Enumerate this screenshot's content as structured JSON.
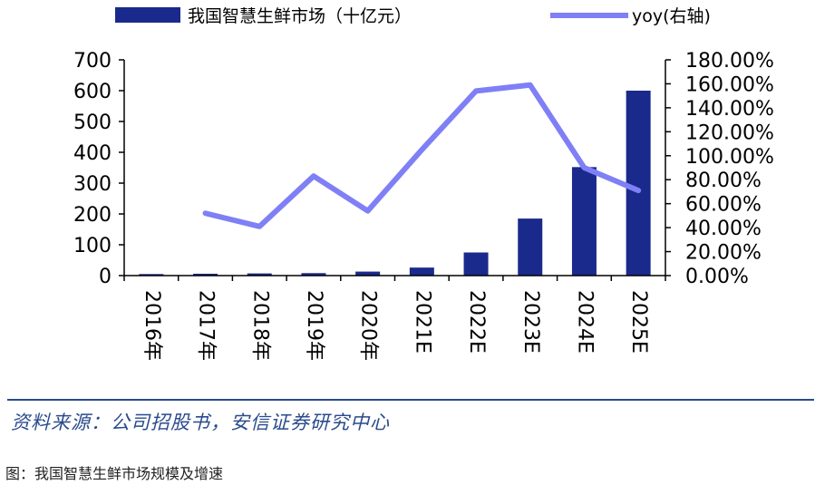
{
  "colors": {
    "bar": "#1a2a8c",
    "line": "#7f7ff6",
    "axis": "#000000",
    "source": "#2a4b8c"
  },
  "chart_data": {
    "type": "bar",
    "categories": [
      "2016年",
      "2017年",
      "2018年",
      "2019年",
      "2020年",
      "2021E",
      "2022E",
      "2023E",
      "2024E",
      "2025E"
    ],
    "series": [
      {
        "name": "我国智慧生鲜市场（十亿元）",
        "type": "bar",
        "axis": "left",
        "values": [
          5,
          6,
          7,
          8,
          13,
          26,
          75,
          185,
          352,
          600
        ]
      },
      {
        "name": "yoy(右轴)",
        "type": "line",
        "axis": "right",
        "values": [
          null,
          0.52,
          0.41,
          0.83,
          0.54,
          1.05,
          1.54,
          1.59,
          0.9,
          0.71
        ]
      }
    ],
    "ylim": [
      0,
      700
    ],
    "y_ticks": [
      "700",
      "600",
      "500",
      "400",
      "300",
      "200",
      "100",
      "0"
    ],
    "y2lim": [
      0,
      1.8
    ],
    "y2_ticks": [
      "180.00%",
      "160.00%",
      "140.00%",
      "120.00%",
      "100.00%",
      "80.00%",
      "60.00%",
      "40.00%",
      "20.00%",
      "0.00%"
    ],
    "legend": "top",
    "grid": false
  },
  "source": "资料来源：公司招股书，安信证券研究中心",
  "caption": "图：我国智慧生鲜市场规模及增速"
}
